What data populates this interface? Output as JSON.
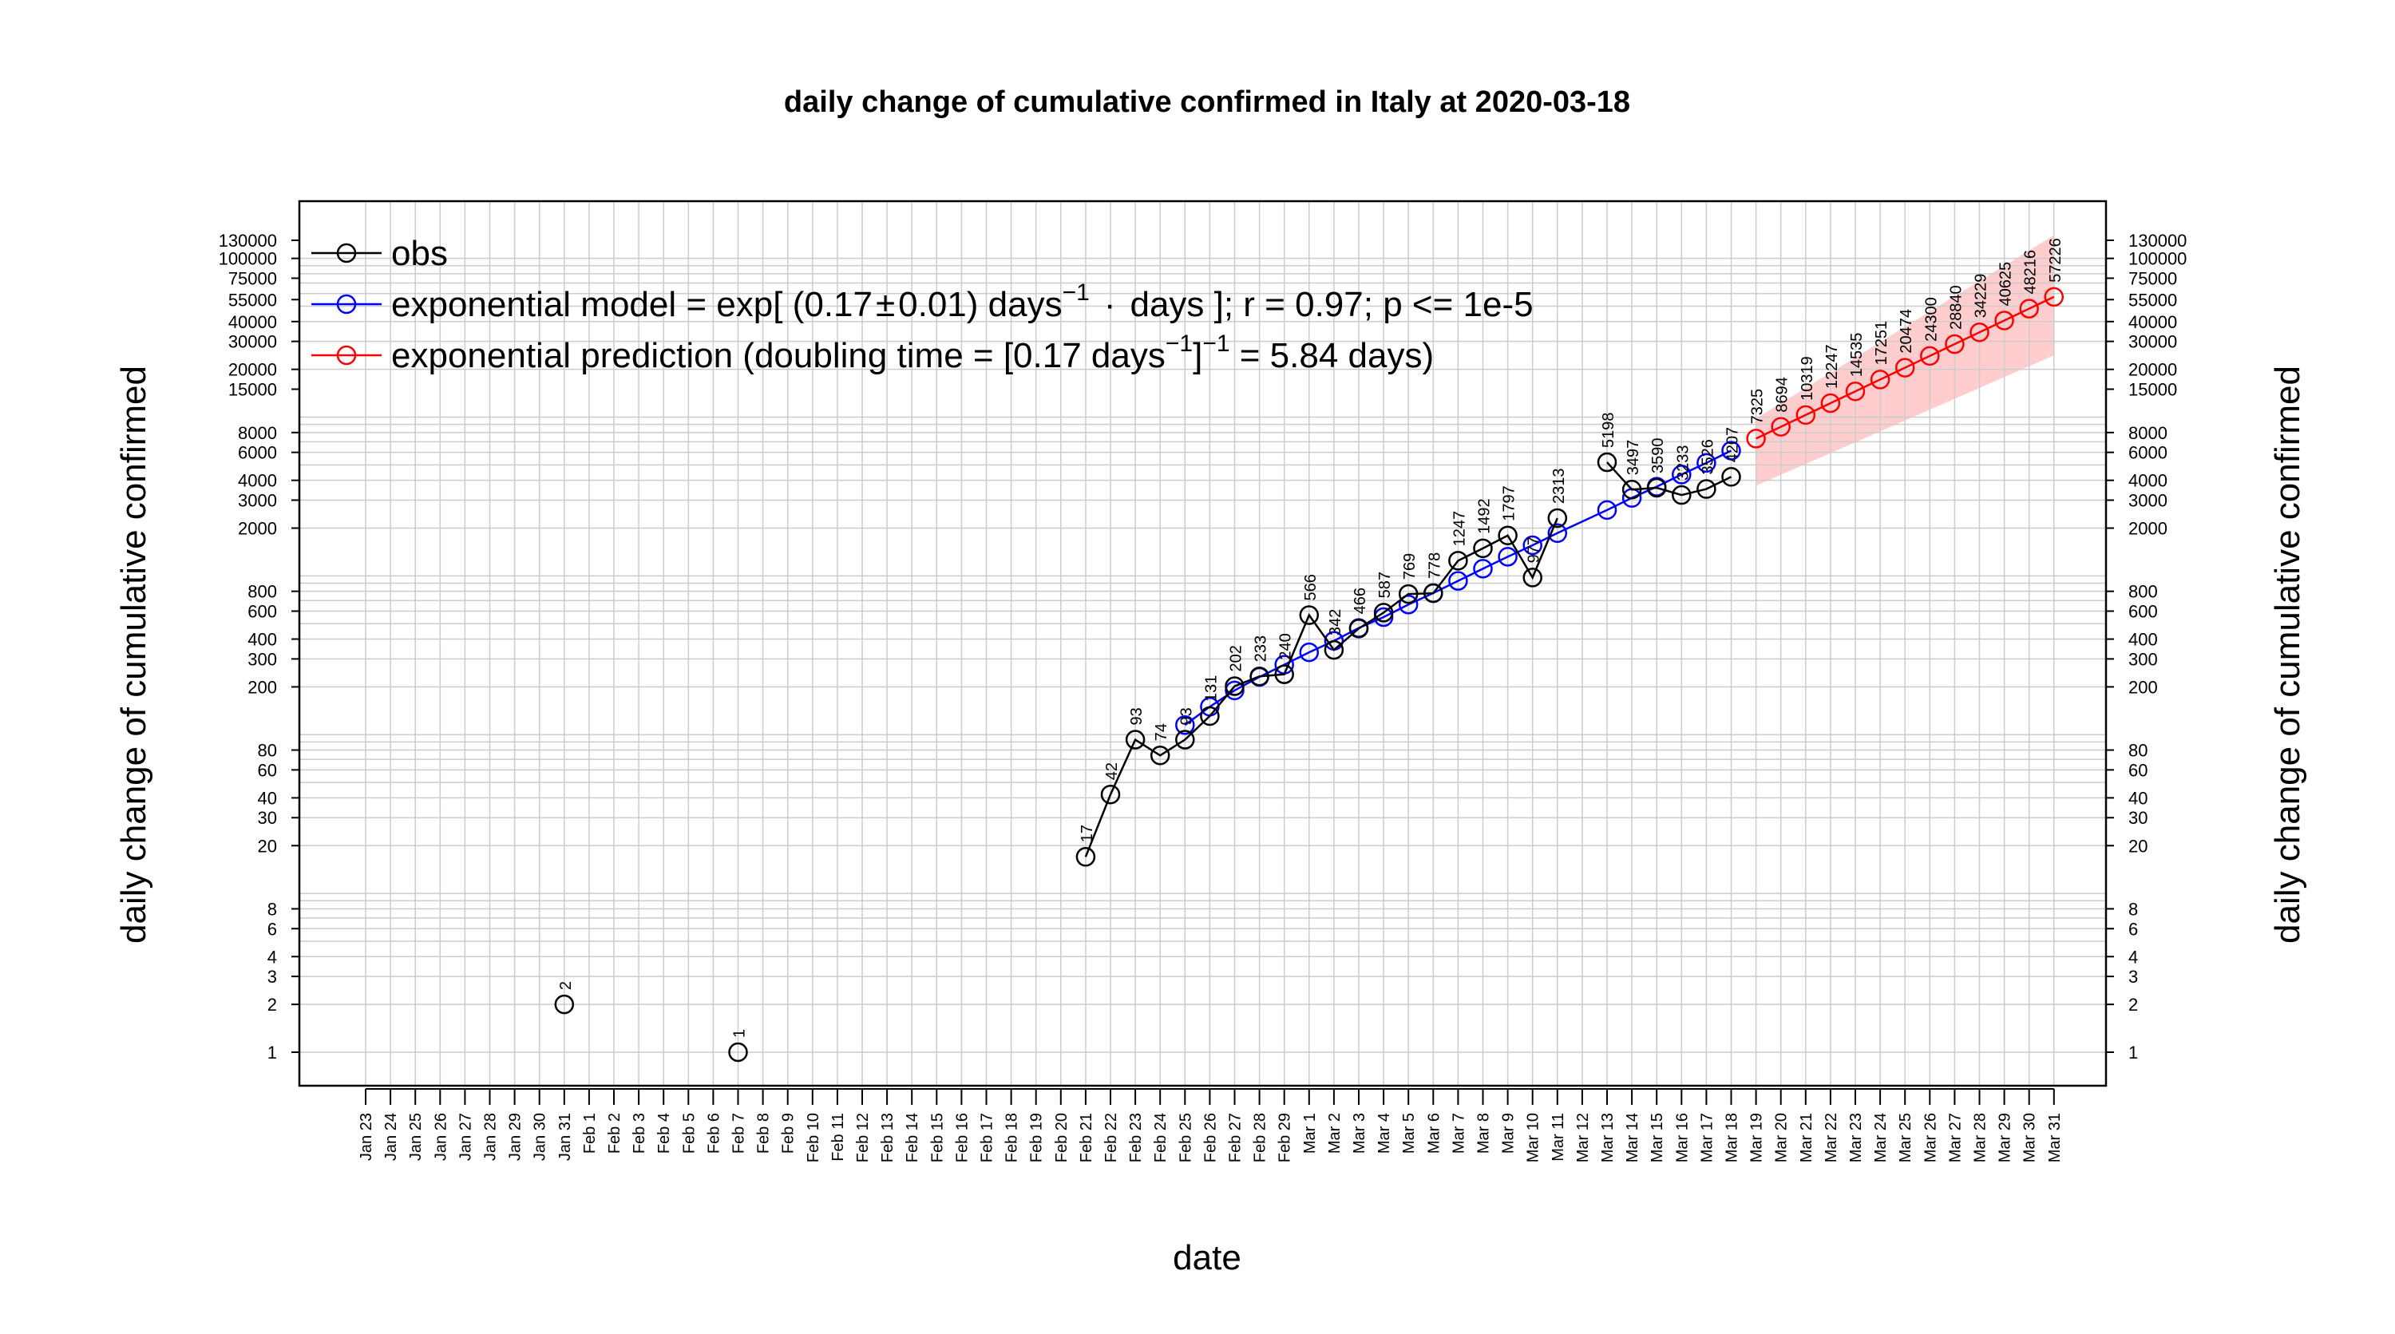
{
  "chart_data": {
    "type": "line",
    "title": "daily change of cumulative confirmed in Italy at 2020-03-18",
    "xlabel": "date",
    "ylabel": "daily change of cumulative confirmed",
    "y_scale": "log10",
    "ylim": [
      0.5,
      150000
    ],
    "grid": true,
    "legend_position": "top-left",
    "dates": [
      "Jan 23",
      "Jan 24",
      "Jan 25",
      "Jan 26",
      "Jan 27",
      "Jan 28",
      "Jan 29",
      "Jan 30",
      "Jan 31",
      "Feb 1",
      "Feb 2",
      "Feb 3",
      "Feb 4",
      "Feb 5",
      "Feb 6",
      "Feb 7",
      "Feb 8",
      "Feb 9",
      "Feb 10",
      "Feb 11",
      "Feb 12",
      "Feb 13",
      "Feb 14",
      "Feb 15",
      "Feb 16",
      "Feb 17",
      "Feb 18",
      "Feb 19",
      "Feb 20",
      "Feb 21",
      "Feb 22",
      "Feb 23",
      "Feb 24",
      "Feb 25",
      "Feb 26",
      "Feb 27",
      "Feb 28",
      "Feb 29",
      "Mar 1",
      "Mar 2",
      "Mar 3",
      "Mar 4",
      "Mar 5",
      "Mar 6",
      "Mar 7",
      "Mar 8",
      "Mar 9",
      "Mar 10",
      "Mar 11",
      "Mar 12",
      "Mar 13",
      "Mar 14",
      "Mar 15",
      "Mar 16",
      "Mar 17",
      "Mar 18",
      "Mar 19",
      "Mar 20",
      "Mar 21",
      "Mar 22",
      "Mar 23",
      "Mar 24",
      "Mar 25",
      "Mar 26",
      "Mar 27",
      "Mar 28",
      "Mar 29",
      "Mar 30",
      "Mar 31"
    ],
    "y_ticks": [
      1,
      2,
      3,
      4,
      6,
      8,
      20,
      30,
      40,
      60,
      80,
      200,
      300,
      400,
      600,
      800,
      2000,
      3000,
      4000,
      6000,
      8000,
      15000,
      20000,
      30000,
      40000,
      55000,
      75000,
      100000,
      130000
    ],
    "y_tick_labels": [
      "1",
      "2",
      "3",
      "4",
      "6",
      "8",
      "20",
      "30",
      "40",
      "60",
      "80",
      "200",
      "300",
      "400",
      "600",
      "800",
      "2000",
      "3000",
      "4000",
      "6000",
      "8000",
      "15000",
      "20000",
      "30000",
      "40000",
      "55000",
      "75000",
      "100000",
      "130000"
    ],
    "colors": {
      "obs": "#000000",
      "model": "#0000ff",
      "prediction": "#ff0000",
      "band": "#ffc4c4",
      "grid": "#cccccc"
    },
    "series": [
      {
        "name": "obs",
        "color": "#000000",
        "segments": [
          [
            {
              "x": "Jan 31",
              "y": 2
            }
          ],
          [
            {
              "x": "Feb 7",
              "y": 1
            }
          ],
          [
            {
              "x": "Feb 21",
              "y": 17
            },
            {
              "x": "Feb 22",
              "y": 42
            },
            {
              "x": "Feb 23",
              "y": 93
            },
            {
              "x": "Feb 24",
              "y": 74
            },
            {
              "x": "Feb 25",
              "y": 93
            },
            {
              "x": "Feb 26",
              "y": 131
            },
            {
              "x": "Feb 27",
              "y": 202
            },
            {
              "x": "Feb 28",
              "y": 233
            },
            {
              "x": "Feb 29",
              "y": 240
            },
            {
              "x": "Mar 1",
              "y": 566
            },
            {
              "x": "Mar 2",
              "y": 342
            },
            {
              "x": "Mar 3",
              "y": 466
            },
            {
              "x": "Mar 4",
              "y": 587
            },
            {
              "x": "Mar 5",
              "y": 769
            },
            {
              "x": "Mar 6",
              "y": 778
            },
            {
              "x": "Mar 7",
              "y": 1247
            },
            {
              "x": "Mar 8",
              "y": 1492
            },
            {
              "x": "Mar 9",
              "y": 1797
            },
            {
              "x": "Mar 10",
              "y": 977
            },
            {
              "x": "Mar 11",
              "y": 2313
            }
          ],
          [
            {
              "x": "Mar 13",
              "y": 5198
            },
            {
              "x": "Mar 14",
              "y": 3497
            },
            {
              "x": "Mar 15",
              "y": 3590
            },
            {
              "x": "Mar 16",
              "y": 3233
            },
            {
              "x": "Mar 17",
              "y": 3526
            },
            {
              "x": "Mar 18",
              "y": 4207
            }
          ]
        ],
        "labels": [
          {
            "x": "Jan 31",
            "y": 2,
            "text": "2"
          },
          {
            "x": "Feb 7",
            "y": 1,
            "text": "1"
          },
          {
            "x": "Feb 21",
            "y": 17,
            "text": "17"
          },
          {
            "x": "Feb 22",
            "y": 42,
            "text": "42"
          },
          {
            "x": "Feb 23",
            "y": 93,
            "text": "93"
          },
          {
            "x": "Feb 24",
            "y": 74,
            "text": "74"
          },
          {
            "x": "Feb 25",
            "y": 93,
            "text": "93"
          },
          {
            "x": "Feb 26",
            "y": 131,
            "text": "131"
          },
          {
            "x": "Feb 27",
            "y": 202,
            "text": "202"
          },
          {
            "x": "Feb 28",
            "y": 233,
            "text": "233"
          },
          {
            "x": "Feb 29",
            "y": 240,
            "text": "240"
          },
          {
            "x": "Mar 1",
            "y": 566,
            "text": "566"
          },
          {
            "x": "Mar 2",
            "y": 342,
            "text": "342"
          },
          {
            "x": "Mar 3",
            "y": 466,
            "text": "466"
          },
          {
            "x": "Mar 4",
            "y": 587,
            "text": "587"
          },
          {
            "x": "Mar 5",
            "y": 769,
            "text": "769"
          },
          {
            "x": "Mar 6",
            "y": 778,
            "text": "778"
          },
          {
            "x": "Mar 7",
            "y": 1247,
            "text": "1247"
          },
          {
            "x": "Mar 8",
            "y": 1492,
            "text": "1492"
          },
          {
            "x": "Mar 9",
            "y": 1797,
            "text": "1797"
          },
          {
            "x": "Mar 10",
            "y": 977,
            "text": "977"
          },
          {
            "x": "Mar 11",
            "y": 2313,
            "text": "2313"
          },
          {
            "x": "Mar 13",
            "y": 5198,
            "text": "5198"
          },
          {
            "x": "Mar 14",
            "y": 3497,
            "text": "3497"
          },
          {
            "x": "Mar 15",
            "y": 3590,
            "text": "3590"
          },
          {
            "x": "Mar 16",
            "y": 3233,
            "text": "3233"
          },
          {
            "x": "Mar 17",
            "y": 3526,
            "text": "3526"
          },
          {
            "x": "Mar 18",
            "y": 4207,
            "text": "4207"
          }
        ]
      },
      {
        "name": "exponential model = exp[ (0.17 ± 0.01) days⁻¹ · days ]; r = 0.97; p <= 1e-5",
        "color": "#0000ff",
        "points": [
          {
            "x": "Feb 25",
            "y": 115
          },
          {
            "x": "Feb 26",
            "y": 150
          },
          {
            "x": "Feb 27",
            "y": 190
          },
          {
            "x": "Feb 28",
            "y": 231
          },
          {
            "x": "Feb 29",
            "y": 276
          },
          {
            "x": "Mar 1",
            "y": 330
          },
          {
            "x": "Mar 2",
            "y": 390
          },
          {
            "x": "Mar 3",
            "y": 470
          },
          {
            "x": "Mar 4",
            "y": 550
          },
          {
            "x": "Mar 5",
            "y": 660
          },
          {
            "x": "Mar 6",
            "y": 780
          },
          {
            "x": "Mar 7",
            "y": 930
          },
          {
            "x": "Mar 8",
            "y": 1110
          },
          {
            "x": "Mar 9",
            "y": 1320
          },
          {
            "x": "Mar 10",
            "y": 1560
          },
          {
            "x": "Mar 11",
            "y": 1860
          },
          {
            "x": "Mar 13",
            "y": 2600
          },
          {
            "x": "Mar 14",
            "y": 3100
          },
          {
            "x": "Mar 15",
            "y": 3650
          },
          {
            "x": "Mar 16",
            "y": 4350
          },
          {
            "x": "Mar 17",
            "y": 5150
          },
          {
            "x": "Mar 18",
            "y": 6150
          }
        ]
      },
      {
        "name": "exponential prediction (doubling time = [0.17 days⁻¹]⁻¹ = 5.84 days)",
        "color": "#ff0000",
        "points": [
          {
            "x": "Mar 19",
            "y": 7325
          },
          {
            "x": "Mar 20",
            "y": 8694
          },
          {
            "x": "Mar 21",
            "y": 10319
          },
          {
            "x": "Mar 22",
            "y": 12247
          },
          {
            "x": "Mar 23",
            "y": 14535
          },
          {
            "x": "Mar 24",
            "y": 17251
          },
          {
            "x": "Mar 25",
            "y": 20474
          },
          {
            "x": "Mar 26",
            "y": 24300
          },
          {
            "x": "Mar 27",
            "y": 28840
          },
          {
            "x": "Mar 28",
            "y": 34229
          },
          {
            "x": "Mar 29",
            "y": 40625
          },
          {
            "x": "Mar 30",
            "y": 48216
          },
          {
            "x": "Mar 31",
            "y": 57226
          }
        ],
        "labels": [
          "7325",
          "8694",
          "10319",
          "12247",
          "14535",
          "17251",
          "20474",
          "24300",
          "28840",
          "34229",
          "40625",
          "48216",
          "57226"
        ],
        "band": [
          {
            "x": "Mar 19",
            "low": 3700,
            "high": 9800
          },
          {
            "x": "Mar 31",
            "low": 24500,
            "high": 140000
          }
        ]
      }
    ],
    "legend": {
      "obs": "obs",
      "model_prefix": "exponential model = exp[ (0.17",
      "model_pm": "±",
      "model_mid": "0.01) days",
      "model_sup": "−1",
      "model_dot": "·",
      "model_suffix": "days ]; r = 0.97; p <= 1e-5",
      "pred_prefix": "exponential prediction (doubling time = [0.17 days",
      "pred_sup1": "−1",
      "pred_mid": "]",
      "pred_sup2": "−1",
      "pred_suffix": " = 5.84 days)"
    }
  }
}
